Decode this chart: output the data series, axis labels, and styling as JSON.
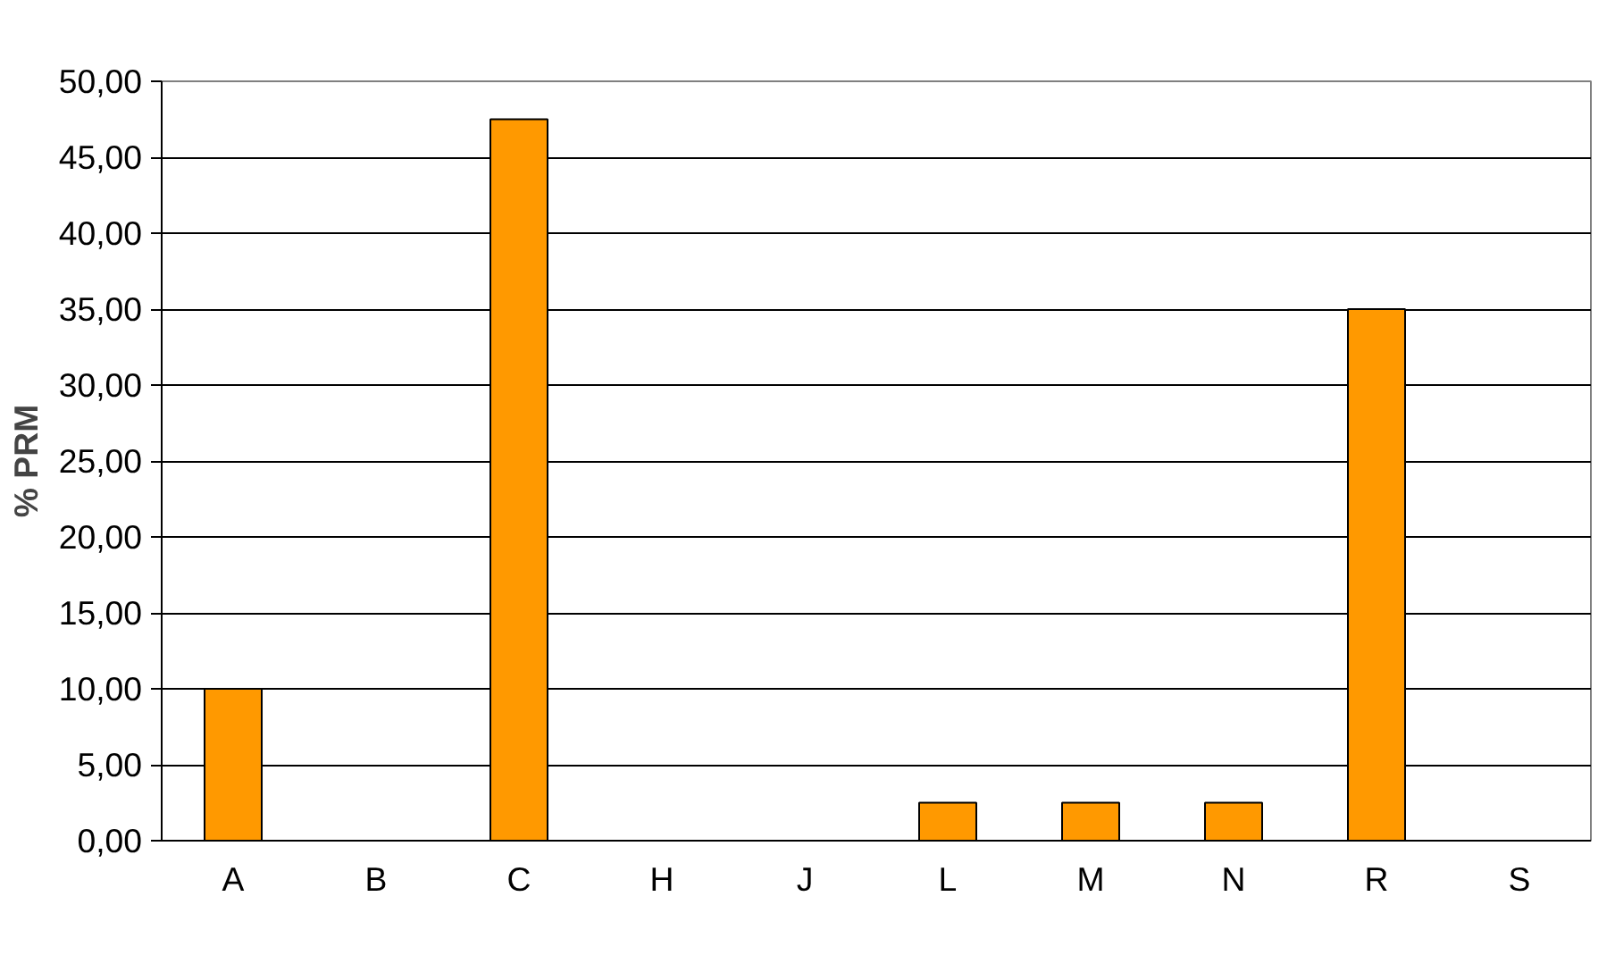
{
  "chart_data": {
    "type": "bar",
    "ylabel": "% PRM",
    "categories": [
      "A",
      "B",
      "C",
      "H",
      "J",
      "L",
      "M",
      "N",
      "R",
      "S"
    ],
    "values": [
      10,
      0,
      47.5,
      0,
      0,
      2.5,
      2.5,
      2.5,
      35,
      0
    ],
    "color": "#ff9900",
    "ylim": [
      0,
      50
    ],
    "yticks": [
      {
        "value": 0,
        "label": "0,00"
      },
      {
        "value": 5,
        "label": "5,00"
      },
      {
        "value": 10,
        "label": "10,00"
      },
      {
        "value": 15,
        "label": "15,00"
      },
      {
        "value": 20,
        "label": "20,00"
      },
      {
        "value": 25,
        "label": "25,00"
      },
      {
        "value": 30,
        "label": "30,00"
      },
      {
        "value": 35,
        "label": "35,00"
      },
      {
        "value": 40,
        "label": "40,00"
      },
      {
        "value": 45,
        "label": "45,00"
      },
      {
        "value": 50,
        "label": "50,00"
      }
    ],
    "grid": "y"
  }
}
